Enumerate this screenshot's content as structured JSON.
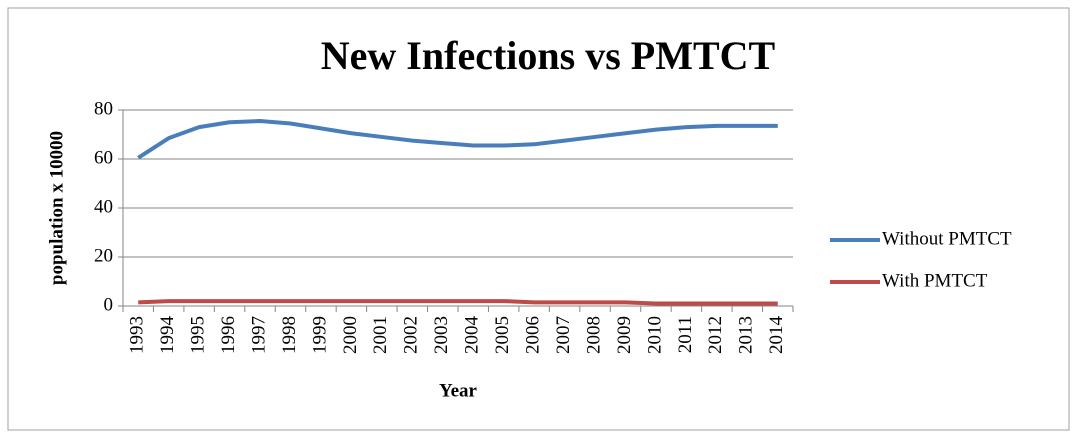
{
  "chart_data": {
    "type": "line",
    "title": "New Infections vs PMTCT",
    "x_label": "Year",
    "y_label": "population x 10000",
    "categories": [
      "1993",
      "1994",
      "1995",
      "1996",
      "1997",
      "1998",
      "1999",
      "2000",
      "2001",
      "2002",
      "2003",
      "2004",
      "2005",
      "2006",
      "2007",
      "2008",
      "2009",
      "2010",
      "2011",
      "2012",
      "2013",
      "2014"
    ],
    "series": [
      {
        "name": "Without PMTCT",
        "color": "#4a7ebb",
        "values": [
          60.5,
          68.5,
          73,
          75,
          75.5,
          74.5,
          72.5,
          70.5,
          69,
          67.5,
          66.5,
          65.5,
          65.5,
          66,
          67.5,
          69,
          70.5,
          72,
          73,
          73.5,
          73.5,
          73.5
        ]
      },
      {
        "name": "With PMTCT",
        "color": "#be4b48",
        "values": [
          1.5,
          2,
          2,
          2,
          2,
          2,
          2,
          2,
          2,
          2,
          2,
          2,
          2,
          1.5,
          1.5,
          1.5,
          1.5,
          1,
          1,
          1,
          1,
          1
        ]
      }
    ],
    "ylim": [
      0,
      80
    ],
    "yticks": [
      0,
      20,
      40,
      60,
      80
    ],
    "grid": true,
    "legend": "right"
  }
}
